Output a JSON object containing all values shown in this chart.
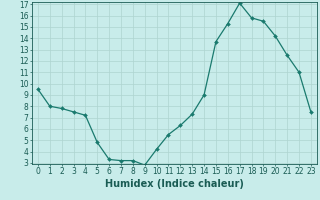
{
  "x": [
    0,
    1,
    2,
    3,
    4,
    5,
    6,
    7,
    8,
    9,
    10,
    11,
    12,
    13,
    14,
    15,
    16,
    17,
    18,
    19,
    20,
    21,
    22,
    23
  ],
  "y": [
    9.5,
    8.0,
    7.8,
    7.5,
    7.2,
    4.8,
    3.3,
    3.2,
    3.2,
    2.8,
    4.2,
    5.5,
    6.3,
    7.3,
    9.0,
    13.7,
    15.3,
    17.1,
    15.8,
    15.5,
    14.2,
    12.5,
    11.0,
    7.5
  ],
  "line_color": "#1a7a6e",
  "marker": "D",
  "marker_size": 2.0,
  "bg_color": "#c8ecea",
  "grid_color": "#aed4d0",
  "xlabel": "Humidex (Indice chaleur)",
  "xlim": [
    -0.5,
    23.5
  ],
  "ylim": [
    3,
    17
  ],
  "yticks": [
    3,
    4,
    5,
    6,
    7,
    8,
    9,
    10,
    11,
    12,
    13,
    14,
    15,
    16,
    17
  ],
  "xticks": [
    0,
    1,
    2,
    3,
    4,
    5,
    6,
    7,
    8,
    9,
    10,
    11,
    12,
    13,
    14,
    15,
    16,
    17,
    18,
    19,
    20,
    21,
    22,
    23
  ],
  "tick_fontsize": 5.5,
  "xlabel_fontsize": 7.0,
  "axis_color": "#1a5c54",
  "line_width": 0.9
}
